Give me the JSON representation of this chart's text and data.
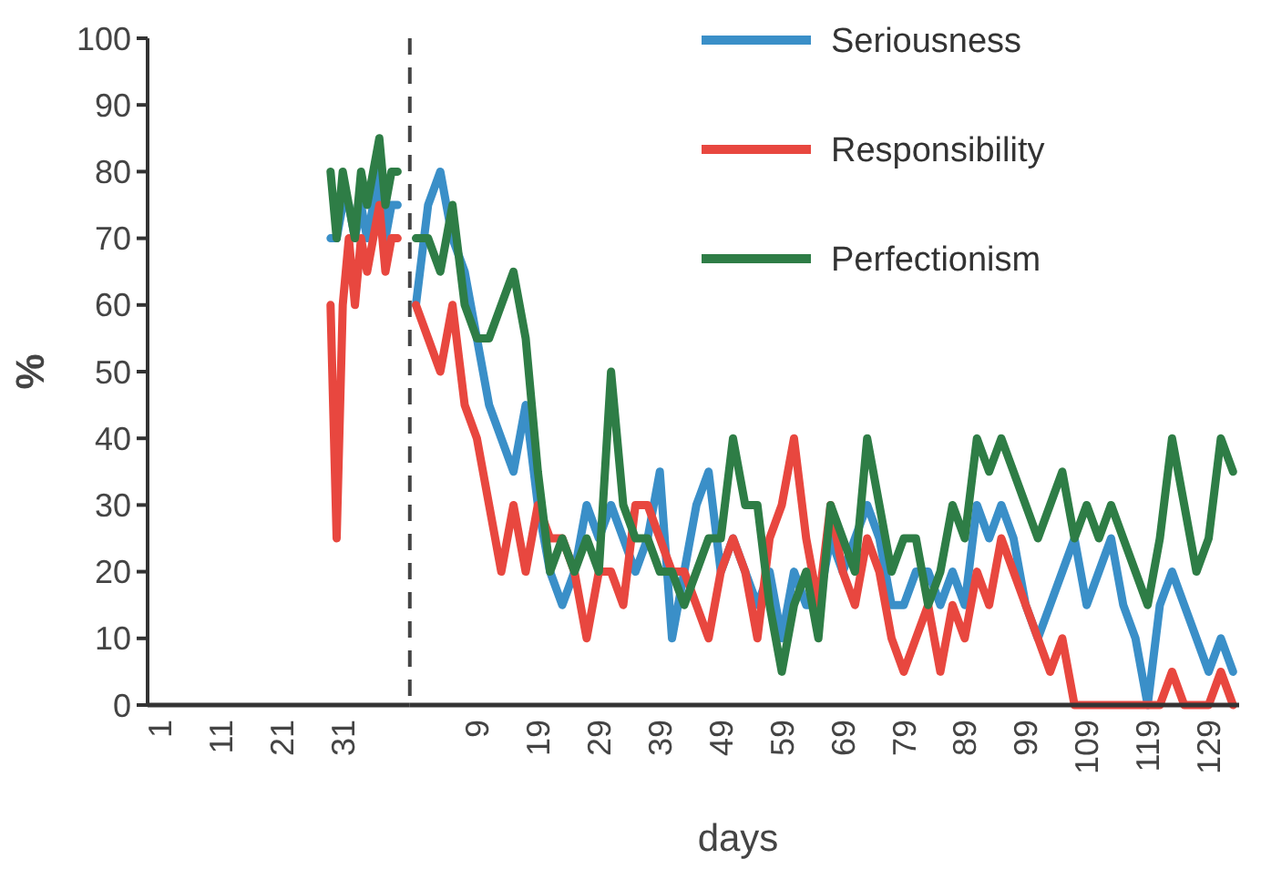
{
  "chart_data": [
    {
      "type": "line",
      "ylabel": "%",
      "x": [
        29,
        30,
        31,
        32,
        33,
        34,
        35,
        36,
        37,
        38,
        39,
        40
      ],
      "series": [
        {
          "color": "#3a8fc8",
          "values": [
            70,
            70,
            75,
            75,
            70,
            75,
            70,
            75,
            80,
            70,
            75,
            75
          ]
        },
        {
          "color": "#e8473f",
          "values": [
            60,
            25,
            60,
            70,
            60,
            70,
            65,
            70,
            75,
            65,
            70,
            70
          ]
        },
        {
          "color": "#2e7d46",
          "values": [
            80,
            70,
            80,
            75,
            70,
            80,
            75,
            80,
            85,
            75,
            80,
            80
          ]
        }
      ],
      "xlim": [
        -1,
        42
      ],
      "xticks": [
        1,
        11,
        21,
        31
      ],
      "ylim": [
        0,
        100
      ],
      "yticks": [
        0,
        10,
        20,
        30,
        40,
        50,
        60,
        70,
        80,
        90,
        100
      ],
      "line_style": "solid",
      "grid": false
    },
    {
      "type": "line",
      "xlabel": "days",
      "x": [
        -1,
        1,
        3,
        5,
        7,
        9,
        11,
        13,
        15,
        17,
        19,
        21,
        23,
        25,
        27,
        29,
        31,
        33,
        35,
        37,
        39,
        41,
        43,
        45,
        47,
        49,
        51,
        53,
        55,
        57,
        59,
        61,
        63,
        65,
        67,
        69,
        71,
        73,
        75,
        77,
        79,
        81,
        83,
        85,
        87,
        89,
        91,
        93,
        95,
        97,
        99,
        101,
        103,
        105,
        107,
        109,
        111,
        113,
        115,
        117,
        119,
        121,
        123,
        125,
        127,
        129,
        131,
        133
      ],
      "series": [
        {
          "name": "Seriousness",
          "color": "#3a8fc8",
          "values": [
            60,
            75,
            80,
            70,
            65,
            55,
            45,
            40,
            35,
            45,
            30,
            20,
            15,
            20,
            30,
            25,
            30,
            25,
            20,
            25,
            35,
            10,
            20,
            30,
            35,
            20,
            25,
            20,
            15,
            20,
            10,
            20,
            15,
            15,
            25,
            20,
            25,
            30,
            25,
            15,
            15,
            20,
            20,
            15,
            20,
            15,
            30,
            25,
            30,
            25,
            15,
            10,
            15,
            20,
            25,
            15,
            20,
            25,
            15,
            10,
            0,
            15,
            20,
            15,
            10,
            5,
            10,
            5
          ]
        },
        {
          "name": "Responsibility",
          "color": "#e8473f",
          "values": [
            60,
            55,
            50,
            60,
            45,
            40,
            30,
            20,
            30,
            20,
            30,
            25,
            25,
            20,
            10,
            20,
            20,
            15,
            30,
            30,
            25,
            20,
            20,
            15,
            10,
            20,
            25,
            20,
            10,
            25,
            30,
            40,
            25,
            15,
            30,
            20,
            15,
            25,
            20,
            10,
            5,
            10,
            15,
            5,
            15,
            10,
            20,
            15,
            25,
            20,
            15,
            10,
            5,
            10,
            0,
            0,
            0,
            0,
            0,
            0,
            0,
            0,
            5,
            0,
            0,
            0,
            5,
            0
          ]
        },
        {
          "name": "Perfectionism",
          "color": "#2e7d46",
          "values": [
            70,
            70,
            65,
            75,
            60,
            55,
            55,
            60,
            65,
            55,
            35,
            20,
            25,
            20,
            25,
            20,
            50,
            30,
            25,
            25,
            20,
            20,
            15,
            20,
            25,
            25,
            40,
            30,
            30,
            15,
            5,
            15,
            20,
            10,
            30,
            25,
            20,
            40,
            30,
            20,
            25,
            25,
            15,
            20,
            30,
            25,
            40,
            35,
            40,
            35,
            30,
            25,
            30,
            35,
            25,
            30,
            25,
            30,
            25,
            20,
            15,
            25,
            40,
            30,
            20,
            25,
            40,
            35
          ]
        }
      ],
      "xlim": [
        -2,
        134
      ],
      "xticks": [
        9,
        19,
        29,
        39,
        49,
        59,
        69,
        79,
        89,
        99,
        109,
        119,
        129
      ],
      "ylim": [
        0,
        100
      ],
      "tick_labels": "x",
      "ref_lines": [
        {
          "axis": "x",
          "value": -2,
          "color": "#444444",
          "line_style": "dashed"
        }
      ],
      "legend": "top right",
      "line_style": "solid",
      "grid": false
    }
  ]
}
